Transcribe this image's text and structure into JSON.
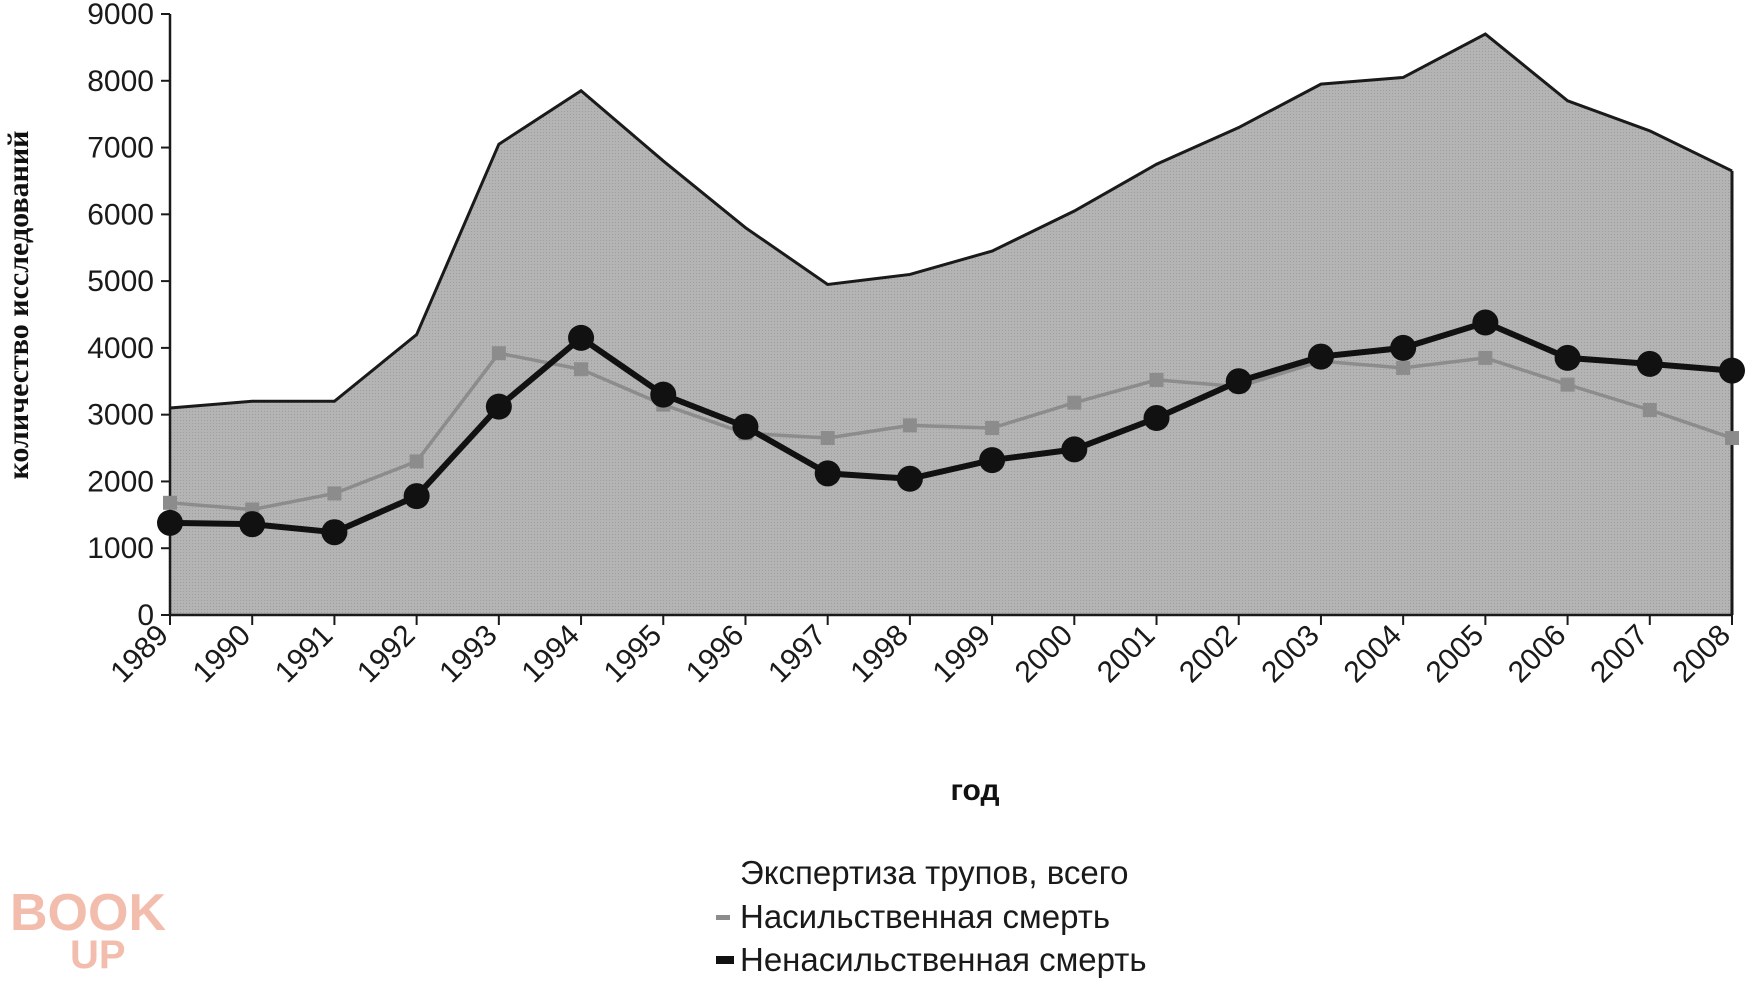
{
  "chart_data": {
    "type": "line",
    "ylabel": "количество исследований",
    "xlabel": "год",
    "ylim": [
      0,
      9000
    ],
    "y_ticks": [
      "0",
      "1000",
      "2000",
      "3000",
      "4000",
      "5000",
      "6000",
      "7000",
      "8000",
      "9000"
    ],
    "grid": false,
    "legend_position": "bottom",
    "categories": [
      "1989",
      "1990",
      "1991",
      "1992",
      "1993",
      "1994",
      "1995",
      "1996",
      "1997",
      "1998",
      "1999",
      "2000",
      "2001",
      "2002",
      "2003",
      "2004",
      "2005",
      "2006",
      "2007",
      "2008"
    ],
    "series": [
      {
        "name": "Экспертиза трупов, всего",
        "kind": "area",
        "color": "#aaaaaa",
        "values": [
          3100,
          3200,
          3200,
          4200,
          7050,
          7850,
          6800,
          5800,
          4950,
          5100,
          5450,
          6050,
          6750,
          7300,
          7950,
          8050,
          8700,
          7700,
          7250,
          6650
        ]
      },
      {
        "name": "Насильственная смерть",
        "kind": "line",
        "color": "#8c8c8c",
        "values": [
          1680,
          1580,
          1820,
          2300,
          3920,
          3680,
          3150,
          2720,
          2650,
          2840,
          2800,
          3180,
          3520,
          3420,
          3800,
          3700,
          3850,
          3450,
          3070,
          2650
        ]
      },
      {
        "name": "Ненасильственная смерть",
        "kind": "line",
        "color": "#111111",
        "values": [
          1380,
          1360,
          1240,
          1780,
          3120,
          4150,
          3300,
          2820,
          2120,
          2040,
          2320,
          2480,
          2950,
          3500,
          3870,
          4000,
          4380,
          3850,
          3760,
          3660
        ]
      }
    ]
  },
  "watermark": {
    "top": "BOOK",
    "bottom": "UP"
  }
}
